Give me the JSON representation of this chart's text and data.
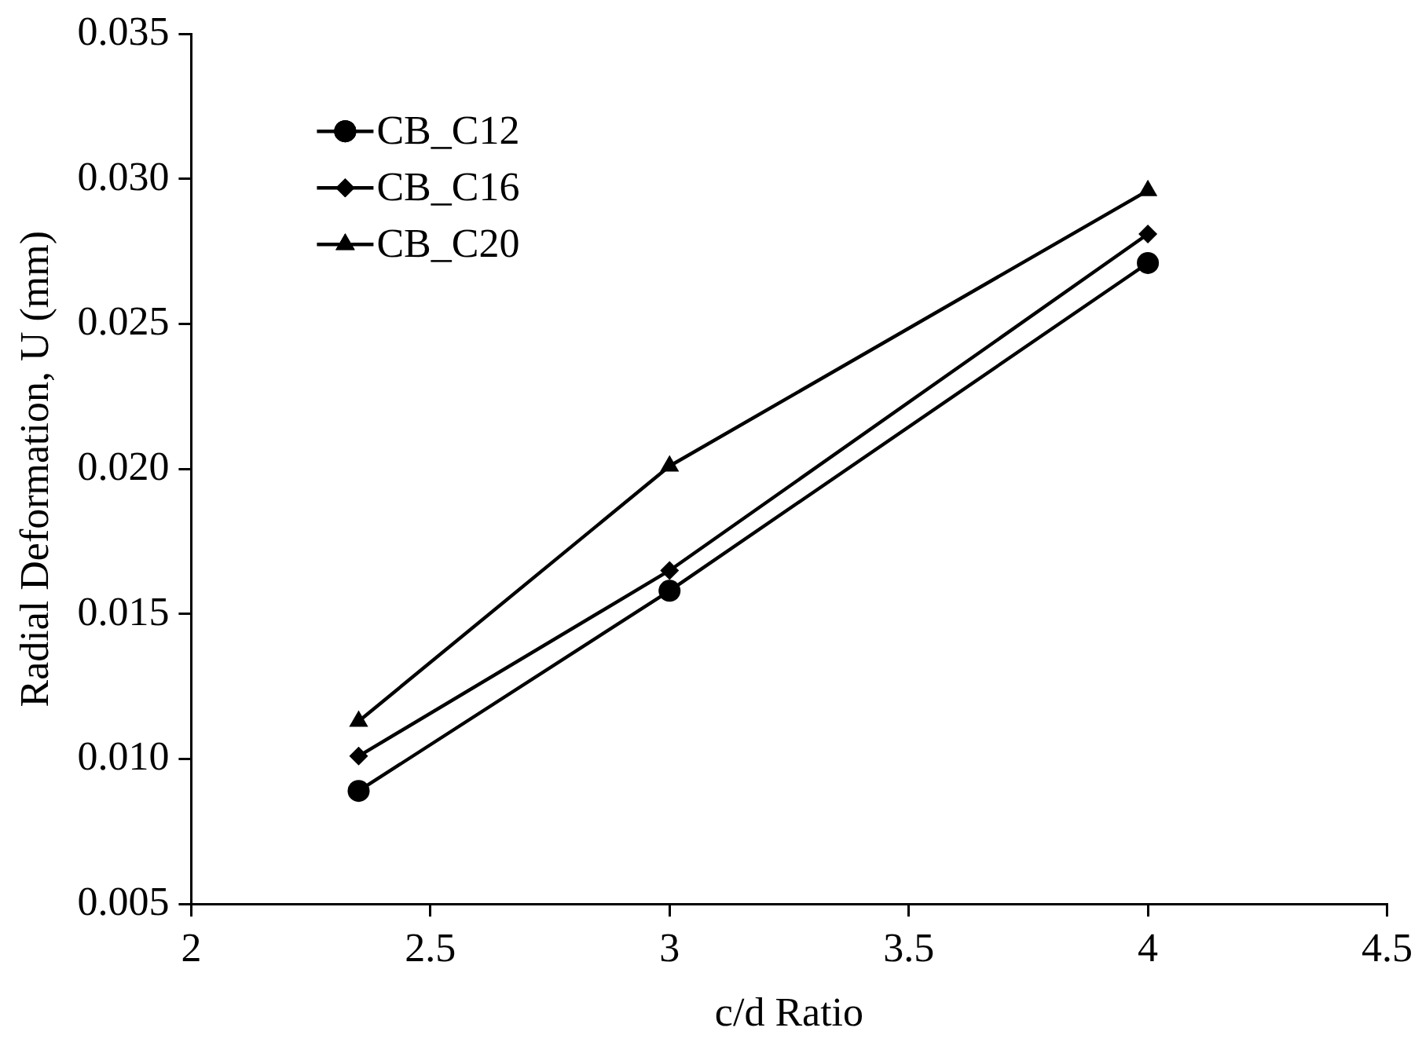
{
  "chart_data": {
    "type": "line",
    "xlabel": "c/d Ratio",
    "ylabel": "Radial Deformation, U (mm)",
    "x": [
      2.35,
      3,
      4
    ],
    "series": [
      {
        "name": "CB_C12",
        "color": "#000000",
        "marker": "circle",
        "values": [
          0.0089,
          0.0158,
          0.0271
        ]
      },
      {
        "name": "CB_C16",
        "color": "#000000",
        "marker": "diamond",
        "values": [
          0.0101,
          0.0165,
          0.0281
        ]
      },
      {
        "name": "CB_C20",
        "color": "#000000",
        "marker": "triangle",
        "values": [
          0.0113,
          0.0201,
          0.0296
        ]
      }
    ],
    "xlim": [
      2,
      4.5
    ],
    "xticks": [
      2,
      2.5,
      3,
      3.5,
      4,
      4.5
    ],
    "ylim": [
      0.005,
      0.035
    ],
    "yticks": [
      {
        "value": 0.005,
        "label": "0.005"
      },
      {
        "value": 0.01,
        "label": "0.010"
      },
      {
        "value": 0.015,
        "label": "0.015"
      },
      {
        "value": 0.02,
        "label": "0.020"
      },
      {
        "value": 0.025,
        "label": "0.025"
      },
      {
        "value": 0.03,
        "label": "0.030"
      },
      {
        "value": 0.035,
        "label": "0.035"
      }
    ],
    "grid": false,
    "legend": "top left",
    "line_style": "solid"
  }
}
